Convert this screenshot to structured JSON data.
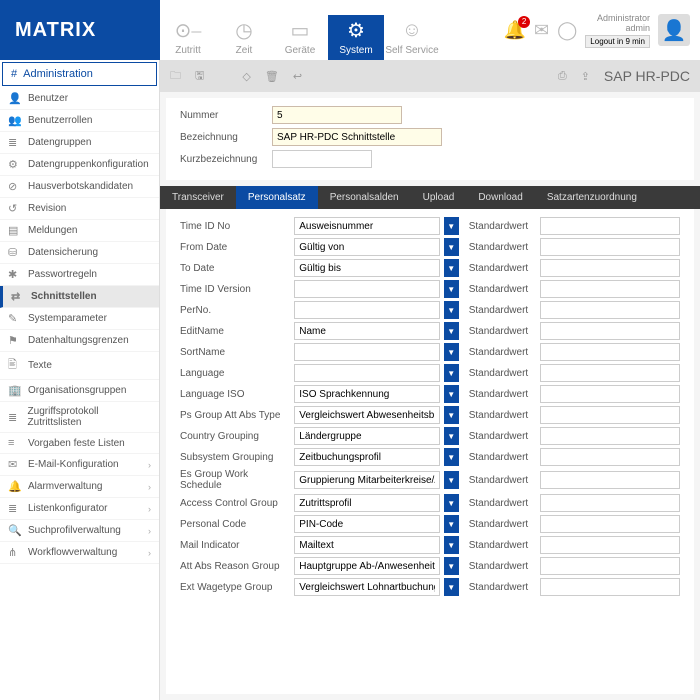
{
  "app": {
    "name": "MATRIX"
  },
  "colors": {
    "primary": "#0b4ba3",
    "text": "#333",
    "muted": "#999"
  },
  "topnav": [
    {
      "label": "Zutritt",
      "icon": "⊙⎯"
    },
    {
      "label": "Zeit",
      "icon": "◷"
    },
    {
      "label": "Geräte",
      "icon": "▭"
    },
    {
      "label": "System",
      "icon": "⚙",
      "active": true
    },
    {
      "label": "Self Service",
      "icon": "☺"
    }
  ],
  "notifications": {
    "count": "2"
  },
  "user": {
    "role": "Administrator",
    "name": "admin",
    "logout": "Logout in 9 min"
  },
  "sidebar": {
    "header": "Administration",
    "items": [
      {
        "icon": "👤",
        "label": "Benutzer"
      },
      {
        "icon": "👥",
        "label": "Benutzerrollen"
      },
      {
        "icon": "≣",
        "label": "Datengruppen"
      },
      {
        "icon": "⚙",
        "label": "Datengruppenkonfiguration"
      },
      {
        "icon": "⊘",
        "label": "Hausverbotskandidaten"
      },
      {
        "icon": "↺",
        "label": "Revision"
      },
      {
        "icon": "▤",
        "label": "Meldungen"
      },
      {
        "icon": "⛁",
        "label": "Datensicherung"
      },
      {
        "icon": "✱",
        "label": "Passwortregeln"
      },
      {
        "icon": "⇄",
        "label": "Schnittstellen",
        "selected": true
      },
      {
        "icon": "✎",
        "label": "Systemparameter"
      },
      {
        "icon": "⚑",
        "label": "Datenhaltungsgrenzen"
      },
      {
        "icon": "🖹",
        "label": "Texte"
      },
      {
        "icon": "🏢",
        "label": "Organisationsgruppen"
      },
      {
        "icon": "≣",
        "label": "Zugriffsprotokoll Zutrittslisten"
      },
      {
        "icon": "≡",
        "label": "Vorgaben feste Listen"
      },
      {
        "icon": "✉",
        "label": "E-Mail-Konfiguration",
        "arrow": true
      },
      {
        "icon": "🔔",
        "label": "Alarmverwaltung",
        "arrow": true
      },
      {
        "icon": "≣",
        "label": "Listenkonfigurator",
        "arrow": true
      },
      {
        "icon": "🔍",
        "label": "Suchprofilverwaltung",
        "arrow": true
      },
      {
        "icon": "⋔",
        "label": "Workflowverwaltung",
        "arrow": true
      }
    ]
  },
  "page": {
    "title": "SAP HR-PDC",
    "form": {
      "nummer_label": "Nummer",
      "nummer": "5",
      "bez_label": "Bezeichnung",
      "bez": "SAP HR-PDC Schnittstelle",
      "kurz_label": "Kurzbezeichnung",
      "kurz": ""
    },
    "tabs": [
      "Transceiver",
      "Personalsatz",
      "Personalsalden",
      "Upload",
      "Download",
      "Satzartenzuordnung"
    ],
    "active_tab": 1,
    "std": "Standardwert",
    "rows": [
      {
        "l": "Time ID No",
        "v": "Ausweisnummer"
      },
      {
        "l": "From Date",
        "v": "Gültig von"
      },
      {
        "l": "To Date",
        "v": "Gültig bis"
      },
      {
        "l": "Time ID Version",
        "v": ""
      },
      {
        "l": "PerNo.",
        "v": ""
      },
      {
        "l": "EditName",
        "v": "Name"
      },
      {
        "l": "SortName",
        "v": ""
      },
      {
        "l": "Language",
        "v": ""
      },
      {
        "l": "Language ISO",
        "v": "ISO Sprachkennung"
      },
      {
        "l": "Ps Group Att Abs Type",
        "v": "Vergleichswert Abwesenheitsbuc"
      },
      {
        "l": "Country Grouping",
        "v": "Ländergruppe"
      },
      {
        "l": "Subsystem Grouping",
        "v": "Zeitbuchungsprofil"
      },
      {
        "l": "Es Group Work Schedule",
        "v": "Gruppierung Mitarbeiterkreise/A"
      },
      {
        "l": "Access Control Group",
        "v": "Zutrittsprofil"
      },
      {
        "l": "Personal Code",
        "v": "PIN-Code"
      },
      {
        "l": "Mail Indicator",
        "v": "Mailtext"
      },
      {
        "l": "Att Abs Reason Group",
        "v": "Hauptgruppe Ab-/Anwesenheitsg"
      },
      {
        "l": "Ext Wagetype Group",
        "v": "Vergleichswert Lohnartbuchung"
      }
    ]
  }
}
